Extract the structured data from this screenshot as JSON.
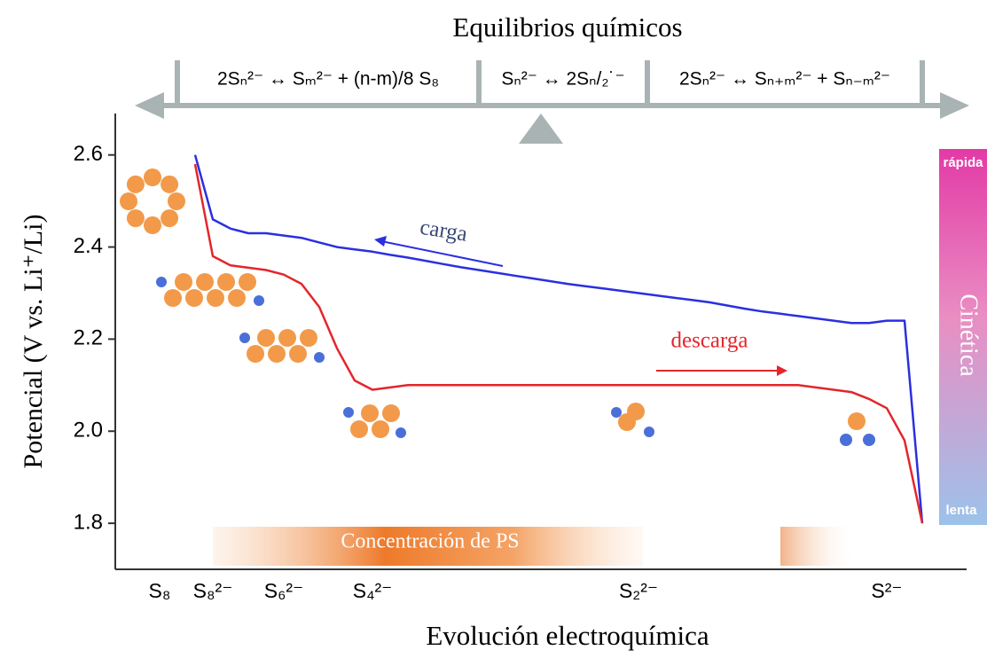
{
  "chart_data": {
    "type": "line",
    "title": "Equilibrios químicos",
    "equilibria": [
      "2Sₙ²⁻ ↔ Sₘ²⁻ + (n-m)/8 S₈",
      "Sₙ²⁻ ↔ 2Sₙ/₂˙⁻",
      "2Sₙ²⁻ ↔ Sₙ₊ₘ²⁻ + Sₙ₋ₘ²⁻"
    ],
    "x_label": "Evolución electroquímica",
    "y_label": "Potencial (V vs. Li⁺/Li)",
    "categories": [
      null,
      null,
      "S₈",
      null,
      null,
      "S₈²⁻",
      null,
      null,
      null,
      "S₆²⁻",
      null,
      null,
      null,
      null,
      "S₄²⁻",
      null,
      null,
      null,
      null,
      null,
      null,
      null,
      null,
      null,
      null,
      null,
      null,
      null,
      null,
      "S₂²⁻",
      null,
      null,
      null,
      null,
      null,
      null,
      null,
      null,
      null,
      null,
      null,
      null,
      null,
      "S²⁻",
      null,
      null,
      null,
      null
    ],
    "series": [
      {
        "name": "carga",
        "color": "#2b2fe0",
        "values": [
          null,
          null,
          null,
          null,
          2.6,
          2.46,
          2.44,
          2.43,
          2.43,
          2.425,
          2.42,
          2.41,
          2.4,
          2.395,
          2.39,
          2.383,
          2.377,
          2.37,
          2.363,
          2.356,
          2.35,
          2.344,
          2.338,
          2.332,
          2.326,
          2.32,
          2.315,
          2.31,
          2.305,
          2.3,
          2.295,
          2.29,
          2.285,
          2.28,
          2.273,
          2.266,
          2.26,
          2.255,
          2.25,
          2.245,
          2.24,
          2.235,
          2.235,
          2.24,
          2.24,
          1.8,
          null,
          null
        ]
      },
      {
        "name": "descarga",
        "color": "#e3262b",
        "values": [
          null,
          null,
          null,
          null,
          2.58,
          2.38,
          2.36,
          2.355,
          2.35,
          2.34,
          2.32,
          2.27,
          2.18,
          2.11,
          2.09,
          2.095,
          2.1,
          2.1,
          2.1,
          2.1,
          2.1,
          2.1,
          2.1,
          2.1,
          2.1,
          2.1,
          2.1,
          2.1,
          2.1,
          2.1,
          2.1,
          2.1,
          2.1,
          2.1,
          2.1,
          2.1,
          2.1,
          2.1,
          2.1,
          2.095,
          2.09,
          2.085,
          2.07,
          2.05,
          1.98,
          1.8,
          null,
          null
        ]
      }
    ],
    "ylim": [
      1.7,
      2.69
    ],
    "yticks": [
      1.8,
      {
        "value": 2,
        "label": "2.0"
      },
      2.2,
      2.4,
      2.6
    ],
    "grid": false,
    "annotations": {
      "concentration": "Concentración de PS",
      "kinetics": "Cinética",
      "fast": "rápida",
      "slow": "lenta"
    }
  }
}
